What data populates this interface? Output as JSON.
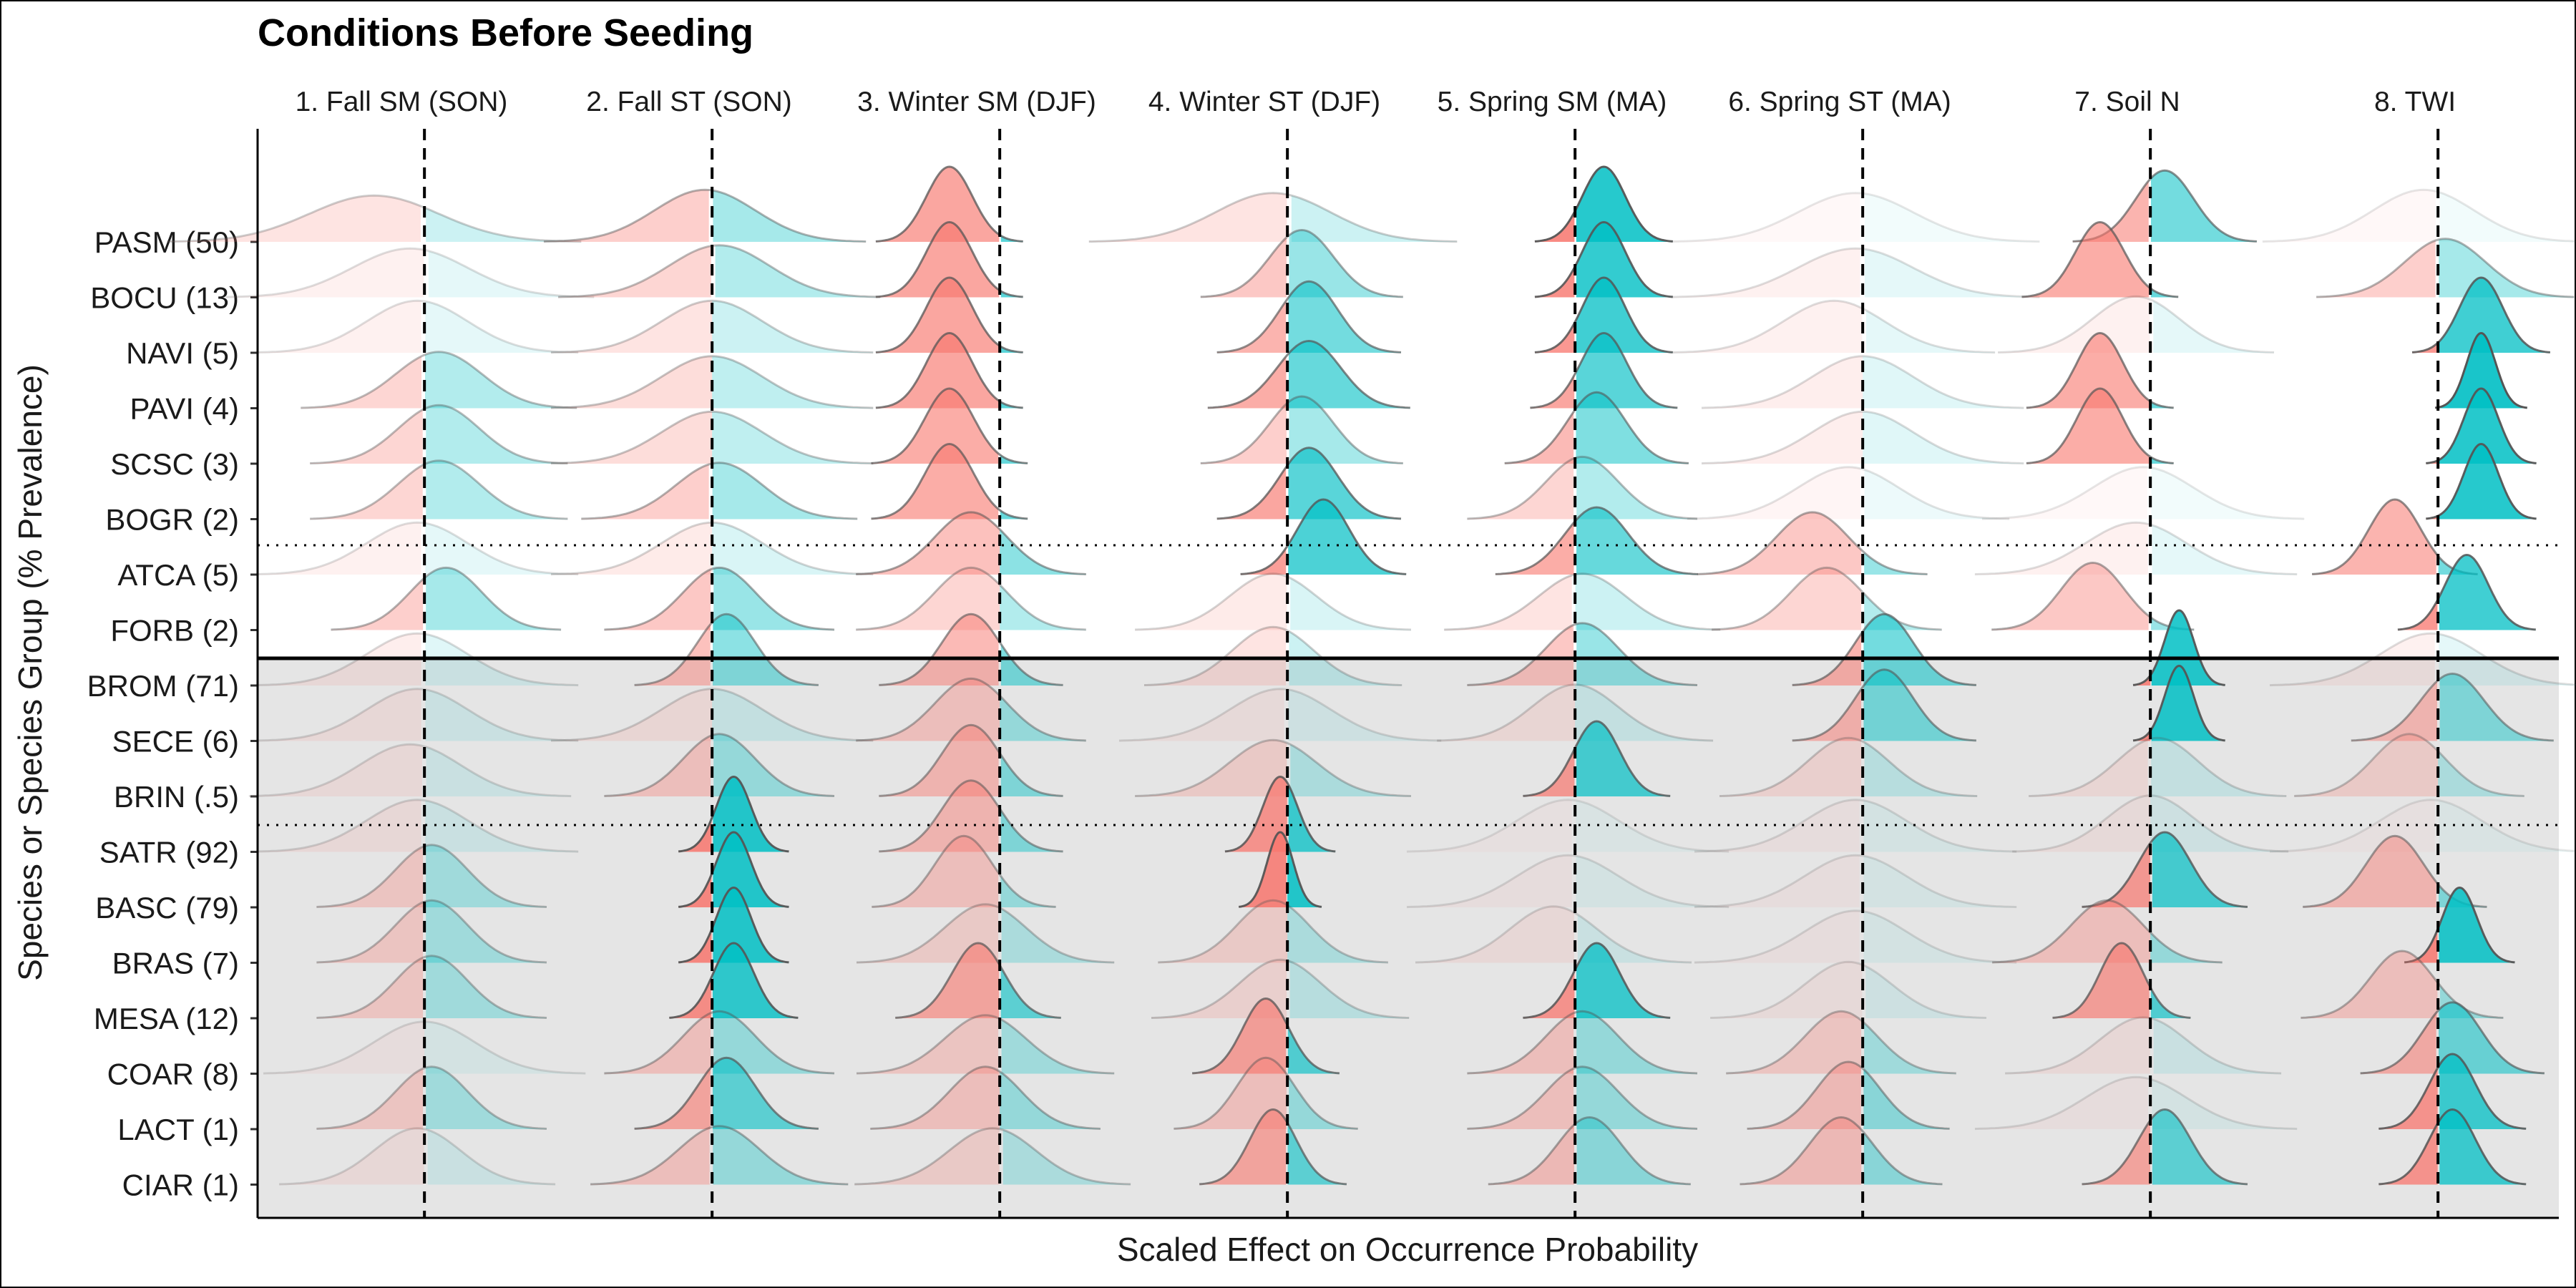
{
  "chart_data": {
    "type": "ridgeline",
    "title": "Conditions Before Seeding",
    "xlabel": "Scaled Effect on Occurrence Probability",
    "ylabel": "Species or Species Group (% Prevalence)",
    "facets": [
      "1. Fall SM (SON)",
      "2. Fall ST (SON)",
      "3. Winter SM (DJF)",
      "4. Winter ST (DJF)",
      "5. Spring SM (MA)",
      "6. Spring ST (MA)",
      "7. Soil N",
      "8. TWI"
    ],
    "rows": [
      "PASM (50)",
      "BOCU (13)",
      "NAVI (5)",
      "PAVI (4)",
      "SCSC (3)",
      "BOGR (2)",
      "ATCA (5)",
      "FORB (2)",
      "BROM (71)",
      "SECE (6)",
      "BRIN (.5)",
      "SATR (92)",
      "BASC (79)",
      "BRAS (7)",
      "MESA (12)",
      "COAR (8)",
      "LACT (1)",
      "CIAR (1)"
    ],
    "groups": {
      "white_rows": [
        0,
        7
      ],
      "gray_rows": [
        8,
        17
      ],
      "dotted_separators_after_row": [
        5,
        10
      ],
      "solid_separator_after_row": 7
    },
    "colors": {
      "negative": "#F8766D",
      "positive": "#00BFC4",
      "outline": "#555555",
      "gray_band": "#e5e5e5"
    },
    "x_reference": "vertical dashed line at zero effect in each facet",
    "series": {
      "PASM (50)": [
        {
          "mean": -0.35,
          "sd": 0.45,
          "alpha": 0.2
        },
        {
          "mean": -0.05,
          "sd": 0.35,
          "alpha": 0.35
        },
        {
          "mean": -0.35,
          "sd": 0.16,
          "alpha": 0.65
        },
        {
          "mean": -0.1,
          "sd": 0.4,
          "alpha": 0.2
        },
        {
          "mean": 0.2,
          "sd": 0.15,
          "alpha": 0.85
        },
        {
          "mean": -0.05,
          "sd": 0.4,
          "alpha": 0.05
        },
        {
          "mean": 0.1,
          "sd": 0.2,
          "alpha": 0.55
        },
        {
          "mean": -0.1,
          "sd": 0.35,
          "alpha": 0.05
        }
      ],
      "BOCU (13)": [
        {
          "mean": -0.1,
          "sd": 0.4,
          "alpha": 0.1
        },
        {
          "mean": 0.05,
          "sd": 0.35,
          "alpha": 0.3
        },
        {
          "mean": -0.35,
          "sd": 0.16,
          "alpha": 0.65
        },
        {
          "mean": 0.1,
          "sd": 0.22,
          "alpha": 0.4
        },
        {
          "mean": 0.2,
          "sd": 0.15,
          "alpha": 0.8
        },
        {
          "mean": -0.05,
          "sd": 0.4,
          "alpha": 0.1
        },
        {
          "mean": -0.35,
          "sd": 0.17,
          "alpha": 0.6
        },
        {
          "mean": 0.05,
          "sd": 0.28,
          "alpha": 0.35
        }
      ],
      "NAVI (5)": [
        {
          "mean": -0.05,
          "sd": 0.35,
          "alpha": 0.1
        },
        {
          "mean": 0.0,
          "sd": 0.35,
          "alpha": 0.2
        },
        {
          "mean": -0.35,
          "sd": 0.16,
          "alpha": 0.65
        },
        {
          "mean": 0.15,
          "sd": 0.2,
          "alpha": 0.55
        },
        {
          "mean": 0.2,
          "sd": 0.15,
          "alpha": 0.75
        },
        {
          "mean": -0.2,
          "sd": 0.35,
          "alpha": 0.1
        },
        {
          "mean": -0.1,
          "sd": 0.3,
          "alpha": 0.1
        },
        {
          "mean": 0.3,
          "sd": 0.15,
          "alpha": 0.75
        }
      ],
      "PAVI (4)": [
        {
          "mean": 0.1,
          "sd": 0.3,
          "alpha": 0.3
        },
        {
          "mean": 0.0,
          "sd": 0.35,
          "alpha": 0.25
        },
        {
          "mean": -0.35,
          "sd": 0.16,
          "alpha": 0.65
        },
        {
          "mean": 0.15,
          "sd": 0.22,
          "alpha": 0.6
        },
        {
          "mean": 0.2,
          "sd": 0.16,
          "alpha": 0.65
        },
        {
          "mean": 0.0,
          "sd": 0.35,
          "alpha": 0.12
        },
        {
          "mean": -0.35,
          "sd": 0.16,
          "alpha": 0.6
        },
        {
          "mean": 0.3,
          "sd": 0.1,
          "alpha": 0.9
        }
      ],
      "SCSC (3)": [
        {
          "mean": 0.1,
          "sd": 0.28,
          "alpha": 0.3
        },
        {
          "mean": 0.0,
          "sd": 0.35,
          "alpha": 0.25
        },
        {
          "mean": -0.35,
          "sd": 0.17,
          "alpha": 0.6
        },
        {
          "mean": 0.1,
          "sd": 0.22,
          "alpha": 0.35
        },
        {
          "mean": 0.15,
          "sd": 0.2,
          "alpha": 0.5
        },
        {
          "mean": 0.0,
          "sd": 0.35,
          "alpha": 0.12
        },
        {
          "mean": -0.35,
          "sd": 0.16,
          "alpha": 0.6
        },
        {
          "mean": 0.3,
          "sd": 0.12,
          "alpha": 0.85
        }
      ],
      "BOGR (2)": [
        {
          "mean": 0.1,
          "sd": 0.28,
          "alpha": 0.3
        },
        {
          "mean": 0.05,
          "sd": 0.3,
          "alpha": 0.35
        },
        {
          "mean": -0.35,
          "sd": 0.17,
          "alpha": 0.6
        },
        {
          "mean": 0.15,
          "sd": 0.2,
          "alpha": 0.65
        },
        {
          "mean": 0.05,
          "sd": 0.25,
          "alpha": 0.3
        },
        {
          "mean": -0.1,
          "sd": 0.35,
          "alpha": 0.07
        },
        {
          "mean": -0.05,
          "sd": 0.35,
          "alpha": 0.05
        },
        {
          "mean": 0.3,
          "sd": 0.12,
          "alpha": 0.85
        }
      ],
      "ATCA (5)": [
        {
          "mean": -0.05,
          "sd": 0.35,
          "alpha": 0.1
        },
        {
          "mean": 0.0,
          "sd": 0.35,
          "alpha": 0.15
        },
        {
          "mean": -0.2,
          "sd": 0.25,
          "alpha": 0.45
        },
        {
          "mean": 0.25,
          "sd": 0.18,
          "alpha": 0.7
        },
        {
          "mean": 0.15,
          "sd": 0.22,
          "alpha": 0.6
        },
        {
          "mean": -0.35,
          "sd": 0.25,
          "alpha": 0.4
        },
        {
          "mean": -0.1,
          "sd": 0.35,
          "alpha": 0.1
        },
        {
          "mean": -0.3,
          "sd": 0.18,
          "alpha": 0.55
        }
      ],
      "FORB (2)": [
        {
          "mean": 0.15,
          "sd": 0.25,
          "alpha": 0.35
        },
        {
          "mean": 0.05,
          "sd": 0.25,
          "alpha": 0.4
        },
        {
          "mean": -0.2,
          "sd": 0.25,
          "alpha": 0.3
        },
        {
          "mean": -0.1,
          "sd": 0.3,
          "alpha": 0.15
        },
        {
          "mean": 0.05,
          "sd": 0.3,
          "alpha": 0.2
        },
        {
          "mean": -0.25,
          "sd": 0.25,
          "alpha": 0.3
        },
        {
          "mean": -0.4,
          "sd": 0.22,
          "alpha": 0.4
        },
        {
          "mean": 0.2,
          "sd": 0.15,
          "alpha": 0.75
        }
      ],
      "BROM (71)": [
        {
          "mean": -0.05,
          "sd": 0.35,
          "alpha": 0.12
        },
        {
          "mean": 0.1,
          "sd": 0.2,
          "alpha": 0.45
        },
        {
          "mean": -0.2,
          "sd": 0.2,
          "alpha": 0.5
        },
        {
          "mean": -0.1,
          "sd": 0.28,
          "alpha": 0.2
        },
        {
          "mean": 0.05,
          "sd": 0.25,
          "alpha": 0.4
        },
        {
          "mean": 0.15,
          "sd": 0.2,
          "alpha": 0.55
        },
        {
          "mean": 0.2,
          "sd": 0.1,
          "alpha": 0.85
        },
        {
          "mean": -0.05,
          "sd": 0.35,
          "alpha": 0.1
        }
      ],
      "SECE (6)": [
        {
          "mean": -0.05,
          "sd": 0.35,
          "alpha": 0.12
        },
        {
          "mean": 0.0,
          "sd": 0.35,
          "alpha": 0.15
        },
        {
          "mean": -0.2,
          "sd": 0.25,
          "alpha": 0.35
        },
        {
          "mean": -0.05,
          "sd": 0.35,
          "alpha": 0.1
        },
        {
          "mean": 0.0,
          "sd": 0.3,
          "alpha": 0.15
        },
        {
          "mean": 0.15,
          "sd": 0.2,
          "alpha": 0.5
        },
        {
          "mean": 0.2,
          "sd": 0.1,
          "alpha": 0.85
        },
        {
          "mean": 0.1,
          "sd": 0.22,
          "alpha": 0.45
        }
      ],
      "BRIN (.5)": [
        {
          "mean": -0.1,
          "sd": 0.35,
          "alpha": 0.12
        },
        {
          "mean": 0.05,
          "sd": 0.25,
          "alpha": 0.35
        },
        {
          "mean": -0.2,
          "sd": 0.2,
          "alpha": 0.45
        },
        {
          "mean": -0.1,
          "sd": 0.3,
          "alpha": 0.25
        },
        {
          "mean": 0.15,
          "sd": 0.16,
          "alpha": 0.7
        },
        {
          "mean": -0.1,
          "sd": 0.28,
          "alpha": 0.2
        },
        {
          "mean": 0.05,
          "sd": 0.28,
          "alpha": 0.15
        },
        {
          "mean": -0.2,
          "sd": 0.25,
          "alpha": 0.25
        }
      ],
      "SATR (92)": [
        {
          "mean": -0.05,
          "sd": 0.35,
          "alpha": 0.12
        },
        {
          "mean": 0.15,
          "sd": 0.12,
          "alpha": 0.85
        },
        {
          "mean": -0.2,
          "sd": 0.2,
          "alpha": 0.45
        },
        {
          "mean": -0.05,
          "sd": 0.12,
          "alpha": 0.75
        },
        {
          "mean": -0.05,
          "sd": 0.35,
          "alpha": 0.05
        },
        {
          "mean": -0.05,
          "sd": 0.35,
          "alpha": 0.08
        },
        {
          "mean": 0.0,
          "sd": 0.3,
          "alpha": 0.1
        },
        {
          "mean": -0.05,
          "sd": 0.35,
          "alpha": 0.05
        }
      ],
      "BASC (79)": [
        {
          "mean": 0.05,
          "sd": 0.25,
          "alpha": 0.3
        },
        {
          "mean": 0.15,
          "sd": 0.12,
          "alpha": 0.85
        },
        {
          "mean": -0.25,
          "sd": 0.2,
          "alpha": 0.35
        },
        {
          "mean": -0.05,
          "sd": 0.09,
          "alpha": 0.85
        },
        {
          "mean": -0.05,
          "sd": 0.35,
          "alpha": 0.08
        },
        {
          "mean": -0.05,
          "sd": 0.35,
          "alpha": 0.08
        },
        {
          "mean": 0.1,
          "sd": 0.18,
          "alpha": 0.7
        },
        {
          "mean": -0.3,
          "sd": 0.2,
          "alpha": 0.45
        }
      ],
      "BRAS (7)": [
        {
          "mean": 0.05,
          "sd": 0.25,
          "alpha": 0.3
        },
        {
          "mean": 0.15,
          "sd": 0.12,
          "alpha": 0.85
        },
        {
          "mean": -0.1,
          "sd": 0.28,
          "alpha": 0.25
        },
        {
          "mean": -0.1,
          "sd": 0.25,
          "alpha": 0.25
        },
        {
          "mean": -0.15,
          "sd": 0.3,
          "alpha": 0.12
        },
        {
          "mean": -0.05,
          "sd": 0.35,
          "alpha": 0.08
        },
        {
          "mean": -0.3,
          "sd": 0.25,
          "alpha": 0.35
        },
        {
          "mean": 0.15,
          "sd": 0.12,
          "alpha": 0.85
        }
      ],
      "MESA (12)": [
        {
          "mean": 0.05,
          "sd": 0.25,
          "alpha": 0.3
        },
        {
          "mean": 0.15,
          "sd": 0.14,
          "alpha": 0.8
        },
        {
          "mean": -0.15,
          "sd": 0.18,
          "alpha": 0.6
        },
        {
          "mean": -0.05,
          "sd": 0.28,
          "alpha": 0.2
        },
        {
          "mean": 0.15,
          "sd": 0.16,
          "alpha": 0.75
        },
        {
          "mean": -0.1,
          "sd": 0.3,
          "alpha": 0.1
        },
        {
          "mean": -0.2,
          "sd": 0.15,
          "alpha": 0.65
        },
        {
          "mean": -0.25,
          "sd": 0.22,
          "alpha": 0.35
        }
      ],
      "COAR (8)": [
        {
          "mean": 0.0,
          "sd": 0.35,
          "alpha": 0.08
        },
        {
          "mean": 0.05,
          "sd": 0.25,
          "alpha": 0.35
        },
        {
          "mean": -0.1,
          "sd": 0.28,
          "alpha": 0.3
        },
        {
          "mean": -0.15,
          "sd": 0.16,
          "alpha": 0.65
        },
        {
          "mean": 0.05,
          "sd": 0.25,
          "alpha": 0.35
        },
        {
          "mean": -0.15,
          "sd": 0.25,
          "alpha": 0.3
        },
        {
          "mean": -0.05,
          "sd": 0.3,
          "alpha": 0.12
        },
        {
          "mean": 0.1,
          "sd": 0.2,
          "alpha": 0.55
        }
      ],
      "LACT (1)": [
        {
          "mean": 0.05,
          "sd": 0.25,
          "alpha": 0.3
        },
        {
          "mean": 0.1,
          "sd": 0.2,
          "alpha": 0.6
        },
        {
          "mean": -0.1,
          "sd": 0.25,
          "alpha": 0.35
        },
        {
          "mean": -0.15,
          "sd": 0.2,
          "alpha": 0.35
        },
        {
          "mean": 0.05,
          "sd": 0.25,
          "alpha": 0.35
        },
        {
          "mean": -0.1,
          "sd": 0.22,
          "alpha": 0.4
        },
        {
          "mean": -0.1,
          "sd": 0.35,
          "alpha": 0.08
        },
        {
          "mean": 0.1,
          "sd": 0.16,
          "alpha": 0.75
        }
      ],
      "CIAR (1)": [
        {
          "mean": -0.05,
          "sd": 0.3,
          "alpha": 0.12
        },
        {
          "mean": 0.05,
          "sd": 0.28,
          "alpha": 0.35
        },
        {
          "mean": -0.05,
          "sd": 0.3,
          "alpha": 0.25
        },
        {
          "mean": -0.1,
          "sd": 0.16,
          "alpha": 0.6
        },
        {
          "mean": 0.1,
          "sd": 0.22,
          "alpha": 0.4
        },
        {
          "mean": -0.15,
          "sd": 0.22,
          "alpha": 0.4
        },
        {
          "mean": 0.1,
          "sd": 0.18,
          "alpha": 0.6
        },
        {
          "mean": 0.1,
          "sd": 0.16,
          "alpha": 0.75
        }
      ]
    }
  }
}
